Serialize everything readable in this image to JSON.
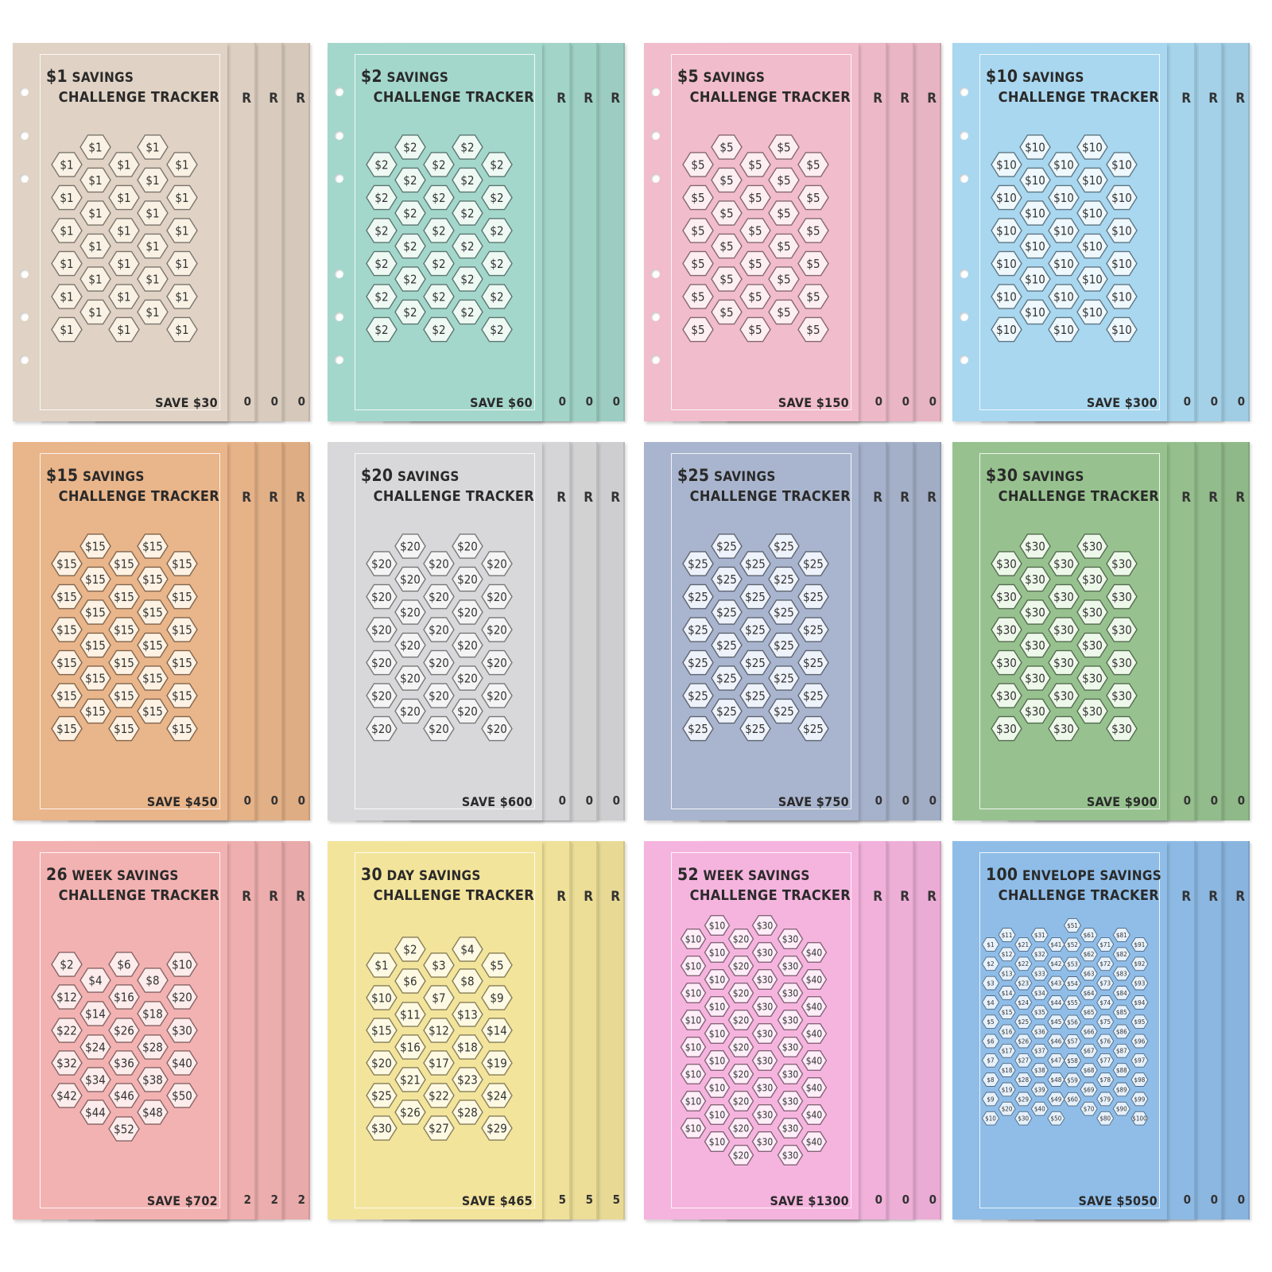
{
  "trackers": [
    {
      "line1_prefix": "$1",
      "line1_suffix": "SAVINGS",
      "line2": "CHALLENGE TRACKER",
      "save": "SAVE $30",
      "color": "#e0d2c4",
      "hex_fill": "#f9f2e4",
      "layout": "standard",
      "values": [
        "$1"
      ]
    },
    {
      "line1_prefix": "$2",
      "line1_suffix": "SAVINGS",
      "line2": "CHALLENGE TRACKER",
      "save": "SAVE $60",
      "color": "#a4d7cb",
      "hex_fill": "#eef9f4",
      "layout": "standard",
      "values": [
        "$2"
      ]
    },
    {
      "line1_prefix": "$5",
      "line1_suffix": "SAVINGS",
      "line2": "CHALLENGE TRACKER",
      "save": "SAVE $150",
      "color": "#f1bccb",
      "hex_fill": "#fdeef2",
      "layout": "standard",
      "values": [
        "$5"
      ]
    },
    {
      "line1_prefix": "$10",
      "line1_suffix": "SAVINGS",
      "line2": "CHALLENGE TRACKER",
      "save": "SAVE $300",
      "color": "#a9d7ef",
      "hex_fill": "#eef8fd",
      "layout": "standard",
      "values": [
        "$10"
      ]
    },
    {
      "line1_prefix": "$15",
      "line1_suffix": "SAVINGS",
      "line2": "CHALLENGE TRACKER",
      "save": "SAVE $450",
      "color": "#e9b58a",
      "hex_fill": "#fdf2e3",
      "layout": "standard",
      "values": [
        "$15"
      ]
    },
    {
      "line1_prefix": "$20",
      "line1_suffix": "SAVINGS",
      "line2": "CHALLENGE TRACKER",
      "save": "SAVE $600",
      "color": "#d8d8da",
      "hex_fill": "#f4f4f5",
      "layout": "standard",
      "values": [
        "$20"
      ]
    },
    {
      "line1_prefix": "$25",
      "line1_suffix": "SAVINGS",
      "line2": "CHALLENGE TRACKER",
      "save": "SAVE $750",
      "color": "#a9b5ce",
      "hex_fill": "#eef2fa",
      "layout": "standard",
      "values": [
        "$25"
      ]
    },
    {
      "line1_prefix": "$30",
      "line1_suffix": "SAVINGS",
      "line2": "CHALLENGE TRACKER",
      "save": "SAVE $900",
      "color": "#97c28f",
      "hex_fill": "#eef8ea",
      "layout": "standard",
      "values": [
        "$30"
      ]
    },
    {
      "line1_prefix": "26",
      "line1_suffix": "WEEK SAVINGS",
      "line2": "CHALLENGE TRACKER",
      "save": "SAVE $702",
      "color": "#f3b2b2",
      "hex_fill": "#fdecec",
      "layout": "week26",
      "values": [
        "$2",
        "$4",
        "$6",
        "$8",
        "$10",
        "$12",
        "$14",
        "$16",
        "$18",
        "$20",
        "$22",
        "$24",
        "$26",
        "$28",
        "$30",
        "$32",
        "$34",
        "$36",
        "$38",
        "$40",
        "$42",
        "$44",
        "$46",
        "$48",
        "$50",
        "$52"
      ]
    },
    {
      "line1_prefix": "30",
      "line1_suffix": "DAY SAVINGS",
      "line2": "CHALLENGE TRACKER",
      "save": "SAVE $465",
      "color": "#f3e49c",
      "hex_fill": "#fdf9e2",
      "layout": "day30",
      "values": [
        "$1",
        "$2",
        "$3",
        "$4",
        "$5",
        "$6",
        "$7",
        "$8",
        "$9",
        "$10",
        "$11",
        "$12",
        "$13",
        "$14",
        "$15",
        "$16",
        "$17",
        "$18",
        "$19",
        "$20",
        "$21",
        "$22",
        "$23",
        "$24",
        "$25",
        "$26",
        "$27",
        "$28",
        "$29",
        "$30"
      ]
    },
    {
      "line1_prefix": "52",
      "line1_suffix": "WEEK SAVINGS",
      "line2": "CHALLENGE TRACKER",
      "save": "SAVE $1300",
      "color": "#f5b4de",
      "hex_fill": "#fdeef8",
      "layout": "week52",
      "values": [
        "$10",
        "$20",
        "$30",
        "$40"
      ]
    },
    {
      "line1_prefix": "100",
      "line1_suffix": "ENVELOPE SAVINGS",
      "line2": "CHALLENGE TRACKER",
      "save": "SAVE $5050",
      "color": "#8fbde8",
      "hex_fill": "#e6f1fb",
      "layout": "env100",
      "values": [
        "$1",
        "$2",
        "$3",
        "$4",
        "$5",
        "$6",
        "$7",
        "$8",
        "$9",
        "$10",
        "$11",
        "$12",
        "$13",
        "$14",
        "$15",
        "$16",
        "$17",
        "$18",
        "$19",
        "$20",
        "$21",
        "$22",
        "$23",
        "$24",
        "$25",
        "$26",
        "$27",
        "$28",
        "$29",
        "$30",
        "$31",
        "$32",
        "$33",
        "$34",
        "$35",
        "$36",
        "$37",
        "$38",
        "$39",
        "$40",
        "$41",
        "$42",
        "$43",
        "$44",
        "$45",
        "$46",
        "$47",
        "$48",
        "$49",
        "$50",
        "$51",
        "$52",
        "$53",
        "$54",
        "$55",
        "$56",
        "$57",
        "$58",
        "$59",
        "$60",
        "$61",
        "$62",
        "$63",
        "$64",
        "$65",
        "$66",
        "$67",
        "$68",
        "$69",
        "$70",
        "$71",
        "$72",
        "$73",
        "$74",
        "$75",
        "$76",
        "$77",
        "$78",
        "$79",
        "$80",
        "$81",
        "$82",
        "$83",
        "$84",
        "$85",
        "$86",
        "$87",
        "$88",
        "$89",
        "$90",
        "$91",
        "$92",
        "$93",
        "$94",
        "$95",
        "$96",
        "$97",
        "$98",
        "$99",
        "$100"
      ]
    }
  ],
  "back_fragments": [
    {
      "top": "R",
      "bottom": "0"
    },
    {
      "top": "R",
      "bottom": "0"
    },
    {
      "top": "R",
      "bottom": "0"
    },
    {
      "top": "R",
      "bottom": "0"
    },
    {
      "top": "R",
      "bottom": "0"
    },
    {
      "top": "R",
      "bottom": "0"
    },
    {
      "top": "R",
      "bottom": "0"
    },
    {
      "top": "R",
      "bottom": "0"
    },
    {
      "top": "R",
      "bottom": "2"
    },
    {
      "top": "R",
      "bottom": "5"
    },
    {
      "top": "R",
      "bottom": "0"
    },
    {
      "top": "R",
      "bottom": "0"
    }
  ]
}
